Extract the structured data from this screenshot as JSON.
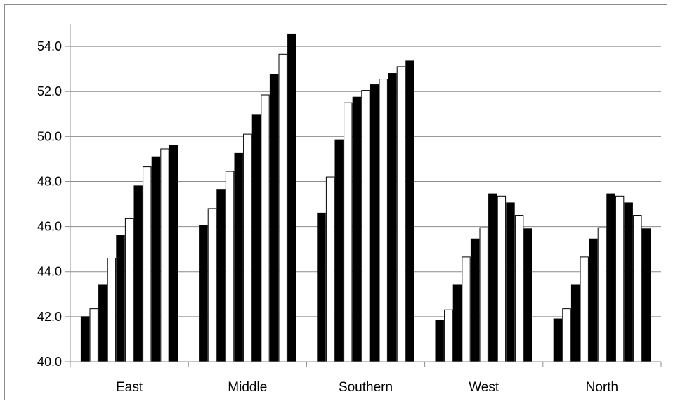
{
  "chart_data": {
    "type": "bar",
    "title": "",
    "xlabel": "",
    "ylabel": "",
    "categories": [
      "East",
      "Middle",
      "Southern",
      "West",
      "North"
    ],
    "ylim": [
      40.0,
      55.0
    ],
    "yticks": [
      "40.0",
      "42.0",
      "44.0",
      "46.0",
      "48.0",
      "50.0",
      "52.0",
      "54.0"
    ],
    "grid": "horizontal",
    "legend": "none",
    "series": [
      {
        "fill": "#000000",
        "values": [
          42.0,
          46.05,
          46.6,
          41.85,
          41.9
        ]
      },
      {
        "fill": "#ffffff",
        "values": [
          42.35,
          46.8,
          48.2,
          42.3,
          42.35
        ]
      },
      {
        "fill": "#000000",
        "values": [
          43.4,
          47.65,
          49.85,
          43.4,
          43.4
        ]
      },
      {
        "fill": "#ffffff",
        "values": [
          44.6,
          48.45,
          51.5,
          44.65,
          44.65
        ]
      },
      {
        "fill": "#000000",
        "values": [
          45.6,
          49.25,
          51.75,
          45.45,
          45.45
        ]
      },
      {
        "fill": "#ffffff",
        "values": [
          46.35,
          50.1,
          52.05,
          45.95,
          45.95
        ]
      },
      {
        "fill": "#000000",
        "values": [
          47.8,
          50.95,
          52.3,
          47.45,
          47.45
        ]
      },
      {
        "fill": "#ffffff",
        "values": [
          48.65,
          51.85,
          52.55,
          47.35,
          47.35
        ]
      },
      {
        "fill": "#000000",
        "values": [
          49.1,
          52.75,
          52.8,
          47.05,
          47.05
        ]
      },
      {
        "fill": "#ffffff",
        "values": [
          49.45,
          53.65,
          53.1,
          46.5,
          46.5
        ]
      },
      {
        "fill": "#000000",
        "values": [
          49.6,
          54.55,
          53.35,
          45.9,
          45.9
        ]
      }
    ],
    "colors": {
      "gridline": "#8c8c8c",
      "axis": "#8c8c8c",
      "bar_stroke": "#000000"
    }
  }
}
